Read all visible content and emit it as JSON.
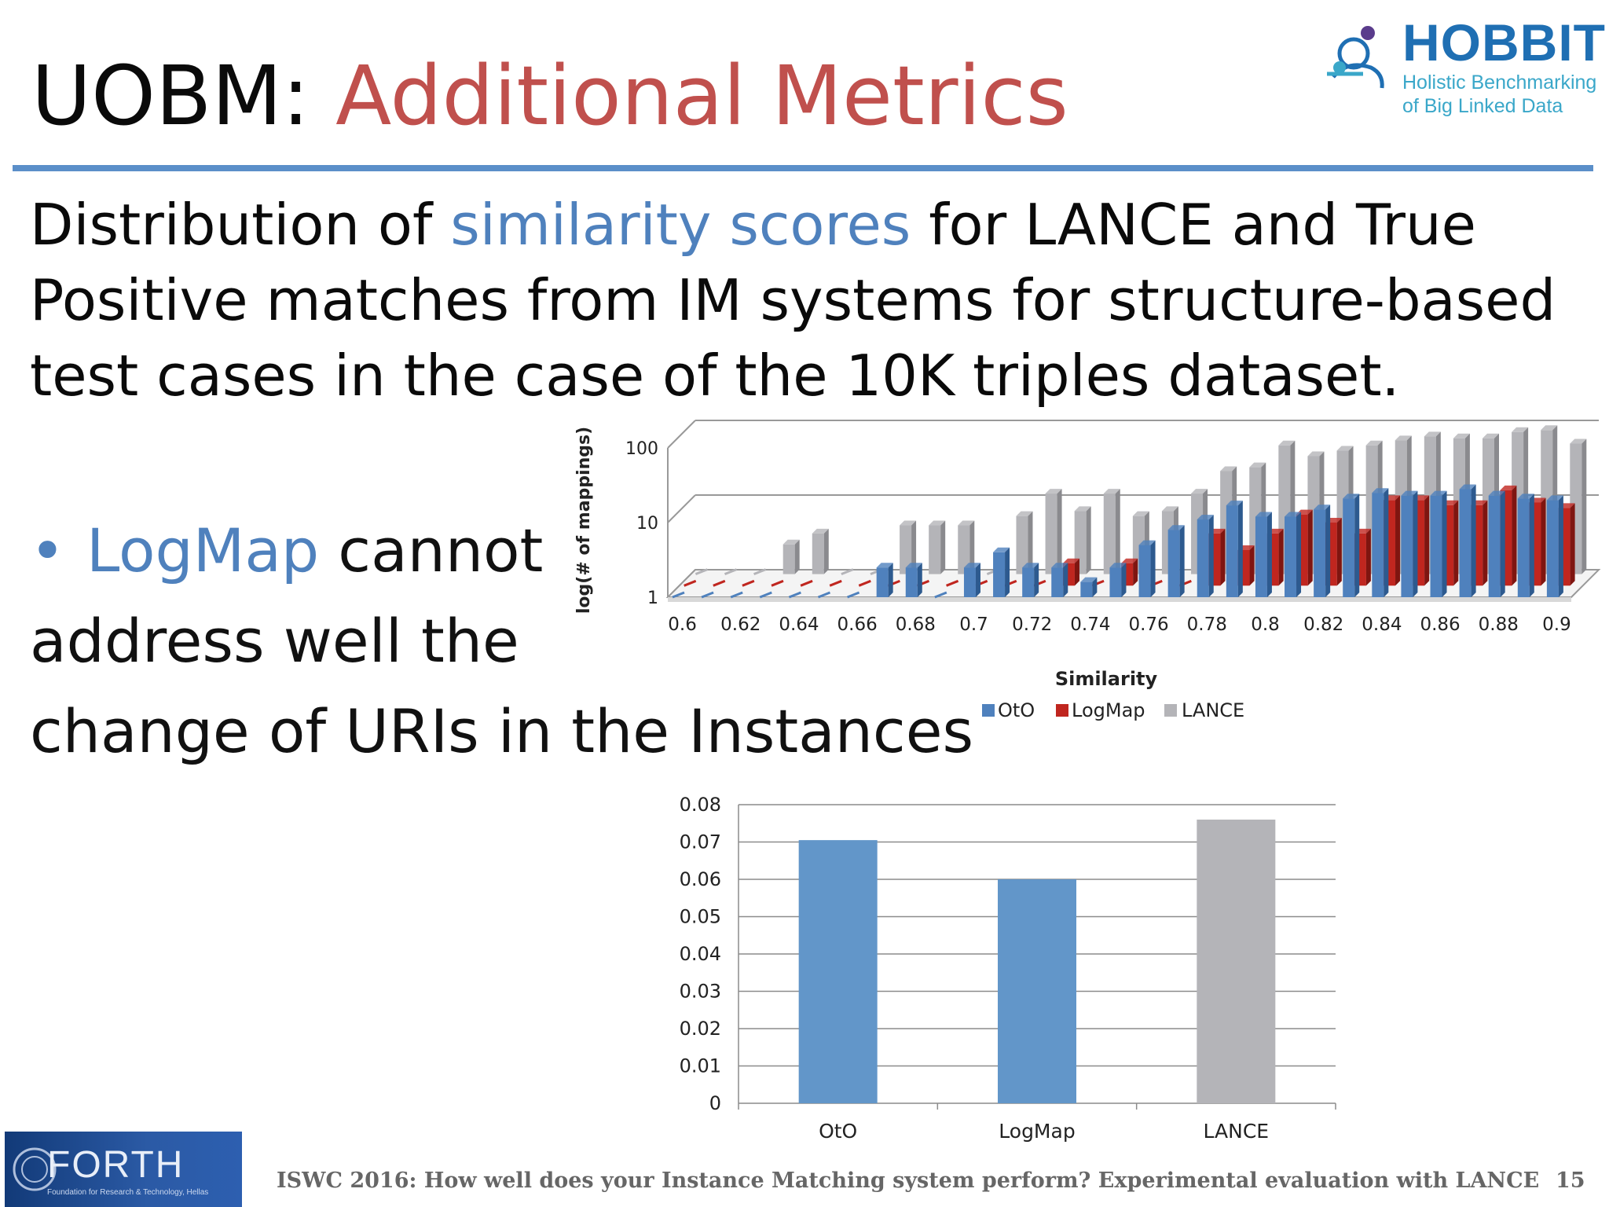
{
  "slide": {
    "title_prefix": "UOBM: ",
    "title_accent": "Additional Metrics",
    "intro_part1": "Distribution of ",
    "intro_highlight": "similarity scores",
    "intro_part2": " for LANCE and True Positive matches from IM systems for structure-based test cases in the case of the 10K triples dataset.",
    "bullet_symbol": "•",
    "bullet_highlight": "LogMap",
    "bullet_rest": " cannot",
    "bullet_line2": "address well the",
    "bullet_line3": "change of URIs in the Instances",
    "footer": "ISWC 2016: How well does your Instance Matching system perform? Experimental evaluation with LANCE",
    "page_number": "15"
  },
  "logos": {
    "hobbit_name": "HOBBIT",
    "hobbit_tagline_1": "Holistic Benchmarking",
    "hobbit_tagline_2": "of Big Linked Data",
    "forth_name": "FORTH",
    "forth_tagline": "Foundation for Research & Technology, Hellas"
  },
  "colors": {
    "OtO": "#4f81bd",
    "LogMap": "#c0261f",
    "LANCE": "#b4b4b8",
    "accent_red": "#c0504d",
    "accent_blue": "#4f81bd"
  },
  "chart_data": [
    {
      "type": "bar",
      "subtype": "3d-clustered-log",
      "xlabel": "Similarity",
      "ylabel": "log(# of mappings)",
      "y_scale": "log",
      "ylim": [
        1,
        100
      ],
      "yticks": [
        "1",
        "10",
        "100"
      ],
      "categories": [
        0.6,
        0.61,
        0.62,
        0.63,
        0.64,
        0.65,
        0.66,
        0.67,
        0.68,
        0.69,
        0.7,
        0.71,
        0.72,
        0.73,
        0.74,
        0.75,
        0.76,
        0.77,
        0.78,
        0.79,
        0.8,
        0.81,
        0.82,
        0.83,
        0.84,
        0.85,
        0.86,
        0.87,
        0.88,
        0.89,
        0.9
      ],
      "tick_labels": [
        "0.6",
        "0.62",
        "0.64",
        "0.66",
        "0.68",
        "0.7",
        "0.72",
        "0.74",
        "0.76",
        "0.78",
        "0.8",
        "0.82",
        "0.84",
        "0.86",
        "0.88",
        "0.9"
      ],
      "legend_position": "bottom",
      "series": [
        {
          "name": "OtO",
          "values": [
            1,
            1,
            1,
            1,
            1,
            1,
            1,
            2.5,
            2.5,
            1,
            2.5,
            4,
            2.5,
            2.5,
            1.6,
            2.5,
            5,
            8,
            11,
            17,
            12,
            12,
            15,
            21,
            25,
            23,
            23,
            28,
            23,
            21,
            20
          ]
        },
        {
          "name": "LogMap",
          "values": [
            1,
            1,
            1,
            1,
            1,
            1,
            1,
            1,
            1,
            1,
            1,
            1,
            1,
            2,
            1,
            2,
            1,
            1,
            5,
            3,
            5,
            9,
            7,
            5,
            14,
            14,
            12,
            12,
            19,
            13,
            11
          ]
        },
        {
          "name": "LANCE",
          "values": [
            1,
            1,
            1,
            2.5,
            3.5,
            1,
            1,
            4.5,
            4.5,
            4.5,
            1,
            6,
            12,
            7,
            12,
            6,
            7,
            12,
            24,
            27,
            53,
            38,
            45,
            53,
            62,
            70,
            66,
            66,
            80,
            85,
            56
          ]
        }
      ]
    },
    {
      "type": "bar",
      "categories": [
        "OtO",
        "LogMap",
        "LANCE"
      ],
      "values": [
        0.0705,
        0.06,
        0.076
      ],
      "ylim": [
        0,
        0.08
      ],
      "yticks": [
        "0",
        "0.01",
        "0.02",
        "0.03",
        "0.04",
        "0.05",
        "0.06",
        "0.07",
        "0.08"
      ],
      "grid": true
    }
  ]
}
